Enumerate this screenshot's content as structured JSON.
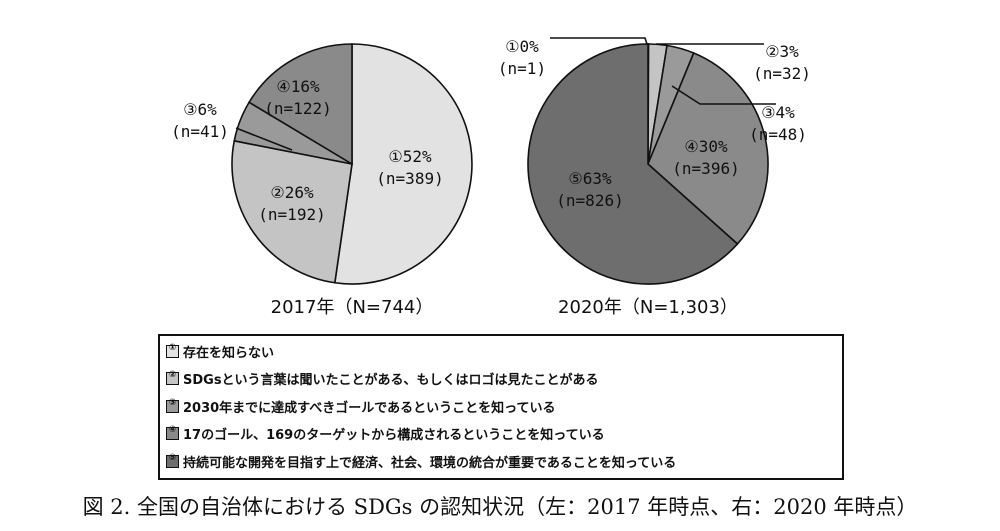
{
  "chart_data": [
    {
      "type": "pie",
      "title": "2017年（N=744）",
      "slices": [
        {
          "label": "①52%",
          "sub": "(n=389)",
          "value": 389,
          "color": "#e2e2e2"
        },
        {
          "label": "②26%",
          "sub": "(n=192)",
          "value": 192,
          "color": "#c4c4c4"
        },
        {
          "label": "③6%",
          "sub": "(n=41)",
          "value": 41,
          "color": "#9a9a9a"
        },
        {
          "label": "④16%",
          "sub": "(n=122)",
          "value": 122,
          "color": "#8a8a8a"
        }
      ]
    },
    {
      "type": "pie",
      "title": "2020年（N=1,303）",
      "slices": [
        {
          "label": "①0%",
          "sub": "(n=1)",
          "value": 1,
          "color": "#e2e2e2"
        },
        {
          "label": "②3%",
          "sub": "(n=32)",
          "value": 32,
          "color": "#c4c4c4"
        },
        {
          "label": "③4%",
          "sub": "(n=48)",
          "value": 48,
          "color": "#9a9a9a"
        },
        {
          "label": "④30%",
          "sub": "(n=396)",
          "value": 396,
          "color": "#8a8a8a"
        },
        {
          "label": "⑤63%",
          "sub": "(n=826)",
          "value": 826,
          "color": "#6e6e6e"
        }
      ]
    }
  ],
  "legend": [
    {
      "marker": "①",
      "text": "存在を知らない",
      "color": "#e2e2e2"
    },
    {
      "marker": "②",
      "text": "SDGsという言葉は聞いたことがある、もしくはロゴは見たことがある",
      "color": "#c4c4c4"
    },
    {
      "marker": "③",
      "text": "2030年までに達成すべきゴールであるということを知っている",
      "color": "#9a9a9a"
    },
    {
      "marker": "④",
      "text": "17のゴール、169のターゲットから構成されるということを知っている",
      "color": "#8a8a8a"
    },
    {
      "marker": "⑤",
      "text": "持続可能な開発を目指す上で経済、社会、環境の統合が重要であることを知っている",
      "color": "#6e6e6e"
    }
  ],
  "caption": "図 2. 全国の自治体における SDGs の認知状況（左：2017 年時点、右：2020 年時点）"
}
